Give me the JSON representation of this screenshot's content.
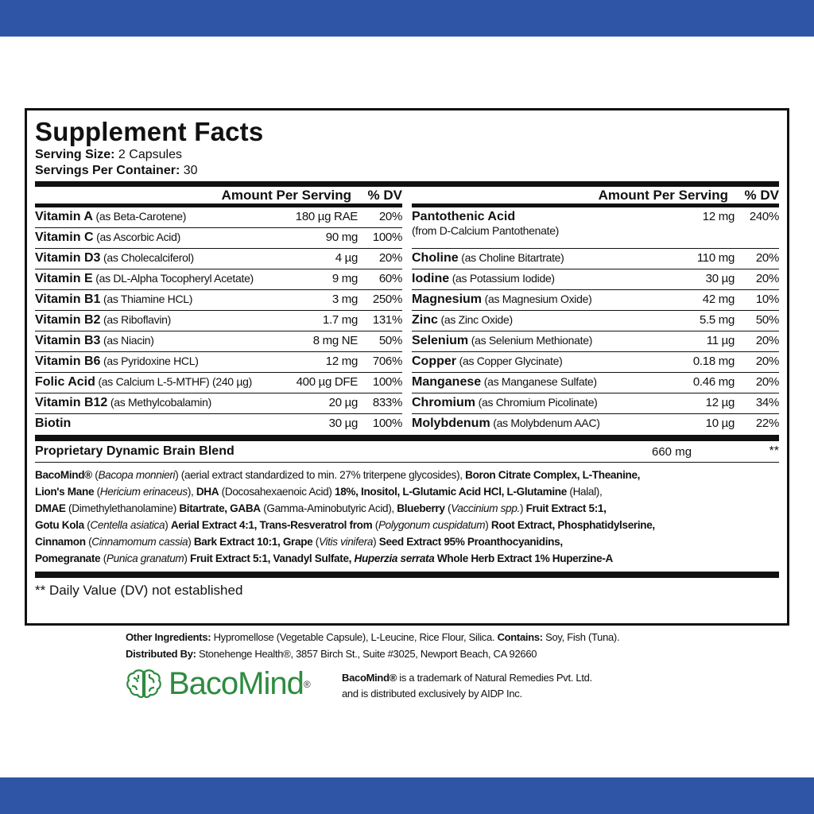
{
  "colors": {
    "band": "#2f56a6",
    "logo_green": "#2e8b3f"
  },
  "title": "Supplement Facts",
  "serving_size_label": "Serving Size:",
  "serving_size": " 2 Capsules",
  "servings_label": "Servings Per Container:",
  "servings": " 30",
  "header": {
    "amount": "Amount Per Serving",
    "dv": "% DV"
  },
  "left": [
    {
      "name": "Vitamin A",
      "sub": " (as Beta-Carotene)",
      "amount": "180 µg RAE",
      "dv": "20%"
    },
    {
      "name": "Vitamin C",
      "sub": " (as Ascorbic Acid)",
      "amount": "90 mg",
      "dv": "100%"
    },
    {
      "name": "Vitamin D3",
      "sub": " (as Cholecalciferol)",
      "amount": "4 µg",
      "dv": "20%"
    },
    {
      "name": "Vitamin E",
      "sub": " (as DL-Alpha Tocopheryl Acetate)",
      "amount": "9 mg",
      "dv": "60%"
    },
    {
      "name": "Vitamin B1",
      "sub": " (as Thiamine HCL)",
      "amount": "3 mg",
      "dv": "250%"
    },
    {
      "name": "Vitamin B2",
      "sub": " (as Riboflavin)",
      "amount": "1.7 mg",
      "dv": "131%"
    },
    {
      "name": "Vitamin B3",
      "sub": " (as Niacin)",
      "amount": "8 mg NE",
      "dv": "50%"
    },
    {
      "name": "Vitamin B6",
      "sub": " (as Pyridoxine HCL)",
      "amount": "12 mg",
      "dv": "706%"
    },
    {
      "name": "Folic Acid",
      "sub": " (as Calcium L-5-MTHF) (240 µg)",
      "amount": "400 µg DFE",
      "dv": "100%"
    },
    {
      "name": "Vitamin B12",
      "sub": " (as Methylcobalamin)",
      "amount": "20 µg",
      "dv": "833%"
    },
    {
      "name": "Biotin",
      "sub": "",
      "amount": "30 µg",
      "dv": "100%"
    }
  ],
  "right": [
    {
      "name": "Pantothenic Acid",
      "sub": "(from D-Calcium Pantothenate)",
      "amount": "12 mg",
      "dv": "240%",
      "tall": true
    },
    {
      "name": "Choline",
      "sub": " (as Choline Bitartrate)",
      "amount": "110 mg",
      "dv": "20%"
    },
    {
      "name": "Iodine",
      "sub": " (as Potassium Iodide)",
      "amount": "30 µg",
      "dv": "20%"
    },
    {
      "name": "Magnesium",
      "sub": " (as Magnesium Oxide)",
      "amount": "42 mg",
      "dv": "10%"
    },
    {
      "name": "Zinc",
      "sub": " (as Zinc Oxide)",
      "amount": "5.5 mg",
      "dv": "50%"
    },
    {
      "name": "Selenium",
      "sub": " (as Selenium Methionate)",
      "amount": "11 µg",
      "dv": "20%"
    },
    {
      "name": "Copper",
      "sub": " (as Copper Glycinate)",
      "amount": "0.18 mg",
      "dv": "20%"
    },
    {
      "name": "Manganese",
      "sub": " (as Manganese Sulfate)",
      "amount": "0.46 mg",
      "dv": "20%"
    },
    {
      "name": "Chromium",
      "sub": " (as Chromium Picolinate)",
      "amount": "12 µg",
      "dv": "34%"
    },
    {
      "name": "Molybdenum",
      "sub": " (as Molybdenum AAC)",
      "amount": "10 µg",
      "dv": "22%"
    }
  ],
  "blend": {
    "name": "Proprietary Dynamic Brain Blend",
    "amount": "660 mg",
    "dv": "**",
    "lines": [
      [
        [
          "b",
          "BacoMind®"
        ],
        [
          "n",
          " ("
        ],
        [
          "i",
          "Bacopa monnieri"
        ],
        [
          "n",
          ") (aerial extract standardized to min. 27% triterpene glycosides), "
        ],
        [
          "b",
          "Boron Citrate Complex, L-Theanine,"
        ]
      ],
      [
        [
          "b",
          "Lion's Mane"
        ],
        [
          "n",
          " ("
        ],
        [
          "i",
          "Hericium erinaceus"
        ],
        [
          "n",
          "), "
        ],
        [
          "b",
          "DHA"
        ],
        [
          "n",
          " (Docosahexaenoic Acid) "
        ],
        [
          "b",
          "18%, Inositol, L-Glutamic Acid HCl, L-Glutamine"
        ],
        [
          "n",
          " (Halal),"
        ]
      ],
      [
        [
          "b",
          "DMAE"
        ],
        [
          "n",
          " (Dimethylethanolamine) "
        ],
        [
          "b",
          "Bitartrate, GABA"
        ],
        [
          "n",
          " (Gamma-Aminobutyric Acid), "
        ],
        [
          "b",
          "Blueberry"
        ],
        [
          "n",
          " ("
        ],
        [
          "i",
          "Vaccinium spp."
        ],
        [
          "n",
          ") "
        ],
        [
          "b",
          "Fruit Extract 5:1,"
        ]
      ],
      [
        [
          "b",
          "Gotu Kola"
        ],
        [
          "n",
          " ("
        ],
        [
          "i",
          "Centella asiatica"
        ],
        [
          "n",
          ") "
        ],
        [
          "b",
          "Aerial Extract 4:1, Trans-Resveratrol from"
        ],
        [
          "n",
          " ("
        ],
        [
          "i",
          "Polygonum cuspidatum"
        ],
        [
          "n",
          ") "
        ],
        [
          "b",
          "Root Extract, Phosphatidylserine,"
        ]
      ],
      [
        [
          "b",
          "Cinnamon"
        ],
        [
          "n",
          " ("
        ],
        [
          "i",
          "Cinnamomum cassia"
        ],
        [
          "n",
          ") "
        ],
        [
          "b",
          "Bark Extract 10:1, Grape"
        ],
        [
          "n",
          " ("
        ],
        [
          "i",
          "Vitis vinifera"
        ],
        [
          "n",
          ") "
        ],
        [
          "b",
          "Seed Extract 95% Proanthocyanidins,"
        ]
      ],
      [
        [
          "b",
          "Pomegranate"
        ],
        [
          "n",
          " ("
        ],
        [
          "i",
          "Punica granatum"
        ],
        [
          "n",
          ") "
        ],
        [
          "b",
          "Fruit Extract 5:1, Vanadyl Sulfate, "
        ],
        [
          "bi",
          "Huperzia serrata"
        ],
        [
          "b",
          " Whole Herb Extract 1% Huperzine-A"
        ]
      ]
    ]
  },
  "footnote": "** Daily Value (DV) not established",
  "other_label": "Other Ingredients:",
  "other": " Hypromellose (Vegetable Capsule), L-Leucine, Rice Flour, Silica.  ",
  "contains_label": "Contains:",
  "contains": " Soy, Fish (Tuna).",
  "dist_label": "Distributed By:",
  "dist": " Stonehenge Health®, 3857 Birch St., Suite #3025, Newport Beach, CA 92660",
  "logo": {
    "word": "BacoMind",
    "reg": "®",
    "icon": "brain-icon"
  },
  "trademark": {
    "brand": "BacoMind®",
    "line1": " is a trademark of Natural Remedies Pvt. Ltd.",
    "line2": "and is distributed exclusively by AIDP Inc."
  }
}
